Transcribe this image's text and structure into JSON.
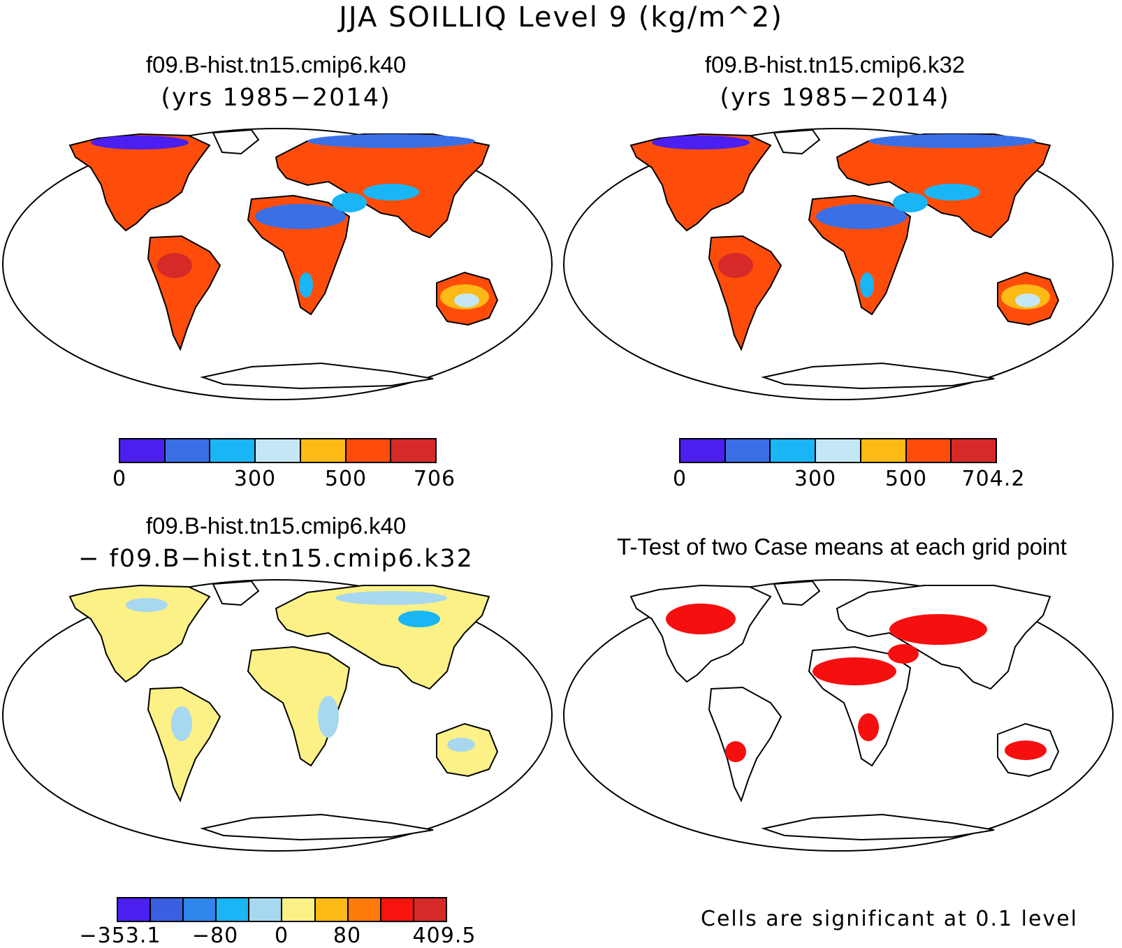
{
  "figure": {
    "title": "JJA SOILLIQ Level 9 (kg/m^2)"
  },
  "panels": [
    {
      "id": "case1",
      "title": "f09.B-hist.tn15.cmip6.k40",
      "subtitle": "(yrs 1985−2014)",
      "colorbar": {
        "colors": [
          "#4a1ff0",
          "#3a6fe6",
          "#19b5f5",
          "#c5e6f5",
          "#fdb914",
          "#fe4d0b",
          "#d62a28"
        ],
        "tick_labels": [
          "0",
          "300",
          "500",
          "706"
        ]
      }
    },
    {
      "id": "case2",
      "title": "f09.B-hist.tn15.cmip6.k32",
      "subtitle": "(yrs 1985−2014)",
      "colorbar": {
        "colors": [
          "#4a1ff0",
          "#3a6fe6",
          "#19b5f5",
          "#c5e6f5",
          "#fdb914",
          "#fe4d0b",
          "#d62a28"
        ],
        "tick_labels": [
          "0",
          "300",
          "500",
          "704.2"
        ]
      }
    },
    {
      "id": "difference",
      "title": "f09.B-hist.tn15.cmip6.k40",
      "subtitle": "− f09.B−hist.tn15.cmip6.k32",
      "colorbar": {
        "colors": [
          "#4a1ff0",
          "#3a5fe0",
          "#2f85ea",
          "#19b5f5",
          "#a8d7f0",
          "#fbf186",
          "#fdb914",
          "#fe7a0a",
          "#f8140e",
          "#d62a28"
        ],
        "tick_labels": [
          "−353.1",
          "−80",
          "0",
          "80",
          "409.5"
        ]
      }
    },
    {
      "id": "ttest",
      "title": "T-Test of two Case means at each grid point",
      "note": "Cells are significant at 0.1 level",
      "significant_color": "#f50f0f"
    }
  ],
  "map_colors": {
    "land_case": "#fe4d0b",
    "land_diff": "#fbf186",
    "ocean": "#ffffff"
  }
}
